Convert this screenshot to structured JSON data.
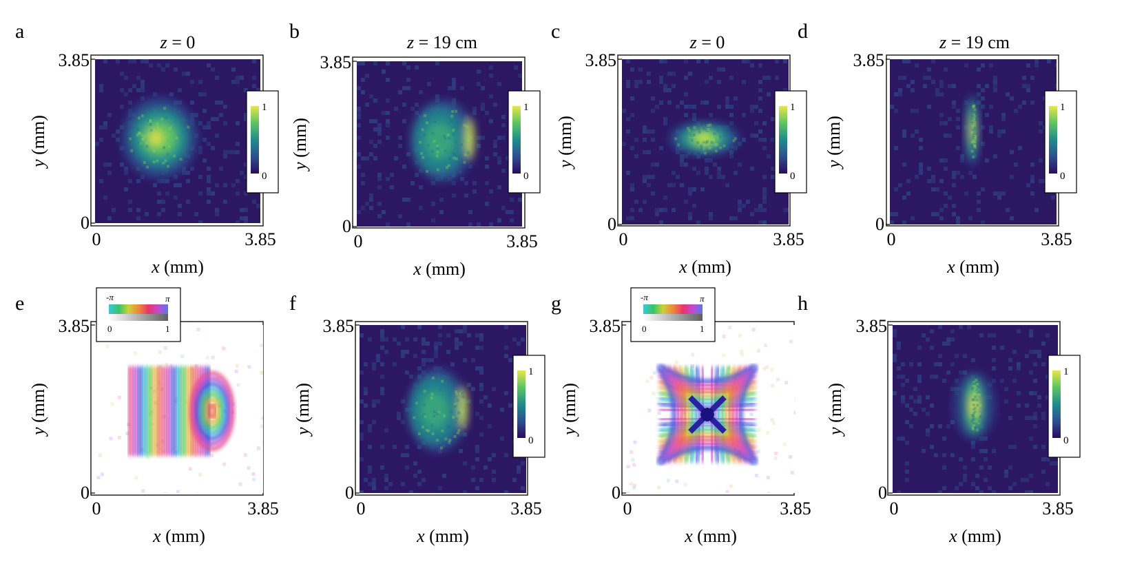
{
  "figure": {
    "panels": [
      {
        "id": "a",
        "letter": "a",
        "type": "intensity",
        "title": "z = 0",
        "xlabel": "x (mm)",
        "ylabel": "y (mm)",
        "xticks": [
          "0",
          "3.85"
        ],
        "yticks": [
          "0",
          "3.85"
        ],
        "colorbar": {
          "min": "0",
          "max": "1"
        }
      },
      {
        "id": "b",
        "letter": "b",
        "type": "intensity",
        "title": "z = 19 cm",
        "xlabel": "x (mm)",
        "ylabel": "y (mm)",
        "xticks": [
          "0",
          "3.85"
        ],
        "yticks": [
          "0",
          "3.85"
        ],
        "colorbar": {
          "min": "0",
          "max": "1"
        }
      },
      {
        "id": "c",
        "letter": "c",
        "type": "intensity",
        "title": "z = 0",
        "xlabel": "x (mm)",
        "ylabel": "y (mm)",
        "xticks": [
          "0",
          "3.85"
        ],
        "yticks": [
          "0",
          "3.85"
        ],
        "colorbar": {
          "min": "0",
          "max": "1"
        }
      },
      {
        "id": "d",
        "letter": "d",
        "type": "intensity",
        "title": "z = 19 cm",
        "xlabel": "x (mm)",
        "ylabel": "y (mm)",
        "xticks": [
          "0",
          "3.85"
        ],
        "yticks": [
          "0",
          "3.85"
        ],
        "colorbar": {
          "min": "0",
          "max": "1"
        }
      },
      {
        "id": "e",
        "letter": "e",
        "type": "phase",
        "title": "",
        "xlabel": "x (mm)",
        "ylabel": "y (mm)",
        "xticks": [
          "0",
          "3.85"
        ],
        "yticks": [
          "0",
          "3.85"
        ],
        "phase_legend": {
          "phase_min": "-π",
          "phase_max": "π",
          "amp_min": "0",
          "amp_max": "1"
        }
      },
      {
        "id": "f",
        "letter": "f",
        "type": "intensity",
        "title": "",
        "xlabel": "x (mm)",
        "ylabel": "y (mm)",
        "xticks": [
          "0",
          "3.85"
        ],
        "yticks": [
          "0",
          "3.85"
        ],
        "colorbar": {
          "min": "0",
          "max": "1"
        }
      },
      {
        "id": "g",
        "letter": "g",
        "type": "phase",
        "title": "",
        "xlabel": "x (mm)",
        "ylabel": "y (mm)",
        "xticks": [
          "0",
          "3.85"
        ],
        "yticks": [
          "0",
          "3.85"
        ],
        "phase_legend": {
          "phase_min": "-π",
          "phase_max": "π",
          "amp_min": "0",
          "amp_max": "1"
        }
      },
      {
        "id": "h",
        "letter": "h",
        "type": "intensity",
        "title": "",
        "xlabel": "x (mm)",
        "ylabel": "y (mm)",
        "xticks": [
          "0",
          "3.85"
        ],
        "yticks": [
          "0",
          "3.85"
        ],
        "colorbar": {
          "min": "0",
          "max": "1"
        }
      }
    ]
  },
  "chart_data": [
    {
      "type": "heatmap",
      "panel": "a",
      "title": "z = 0",
      "xlabel": "x (mm)",
      "ylabel": "y (mm)",
      "xlim": [
        0,
        3.85
      ],
      "ylim": [
        0,
        3.85
      ],
      "colorbar_range": [
        0,
        1
      ],
      "feature": "broad round speckled spot",
      "center_mm": [
        1.5,
        2.0
      ],
      "width_mm": 1.6,
      "height_mm": 1.8
    },
    {
      "type": "heatmap",
      "panel": "b",
      "title": "z = 19 cm",
      "xlabel": "x (mm)",
      "ylabel": "y (mm)",
      "xlim": [
        0,
        3.85
      ],
      "ylim": [
        0,
        3.85
      ],
      "colorbar_range": [
        0,
        1
      ],
      "feature": "half-disc spot with bright right edge",
      "center_mm": [
        2.0,
        2.0
      ],
      "width_mm": 1.5,
      "height_mm": 1.9
    },
    {
      "type": "heatmap",
      "panel": "c",
      "title": "z = 0",
      "xlabel": "x (mm)",
      "ylabel": "y (mm)",
      "xlim": [
        0,
        3.85
      ],
      "ylim": [
        0,
        3.85
      ],
      "colorbar_range": [
        0,
        1
      ],
      "feature": "horizontal elliptical spot",
      "center_mm": [
        1.9,
        2.0
      ],
      "width_mm": 1.6,
      "height_mm": 0.8
    },
    {
      "type": "heatmap",
      "panel": "d",
      "title": "z = 19 cm",
      "xlabel": "x (mm)",
      "ylabel": "y (mm)",
      "xlim": [
        0,
        3.85
      ],
      "ylim": [
        0,
        3.85
      ],
      "colorbar_range": [
        0,
        1
      ],
      "feature": "narrow vertical line focus",
      "center_mm": [
        1.9,
        2.2
      ],
      "width_mm": 0.1,
      "height_mm": 1.5
    },
    {
      "type": "heatmap",
      "panel": "e",
      "xlabel": "x (mm)",
      "ylabel": "y (mm)",
      "xlim": [
        0,
        3.85
      ],
      "ylim": [
        0,
        3.85
      ],
      "phase_range": [
        "-π",
        "π"
      ],
      "amplitude_range": [
        0,
        1
      ],
      "feature": "vertical phase fringes with curved rings on right"
    },
    {
      "type": "heatmap",
      "panel": "f",
      "xlabel": "x (mm)",
      "ylabel": "y (mm)",
      "xlim": [
        0,
        3.85
      ],
      "ylim": [
        0,
        3.85
      ],
      "colorbar_range": [
        0,
        1
      ],
      "feature": "half-disc spot with bright right edge",
      "center_mm": [
        1.8,
        1.9
      ],
      "width_mm": 1.4,
      "height_mm": 1.9
    },
    {
      "type": "heatmap",
      "panel": "g",
      "xlabel": "x (mm)",
      "ylabel": "y (mm)",
      "xlim": [
        0,
        3.85
      ],
      "ylim": [
        0,
        3.85
      ],
      "phase_range": [
        "-π",
        "π"
      ],
      "amplitude_range": [
        0,
        1
      ],
      "feature": "hyperbolic (saddle) phase fringes"
    },
    {
      "type": "heatmap",
      "panel": "h",
      "xlabel": "x (mm)",
      "ylabel": "y (mm)",
      "xlim": [
        0,
        3.85
      ],
      "ylim": [
        0,
        3.85
      ],
      "colorbar_range": [
        0,
        1
      ],
      "feature": "narrow vertical elongated spot",
      "center_mm": [
        1.9,
        2.0
      ],
      "width_mm": 0.25,
      "height_mm": 1.4
    }
  ]
}
